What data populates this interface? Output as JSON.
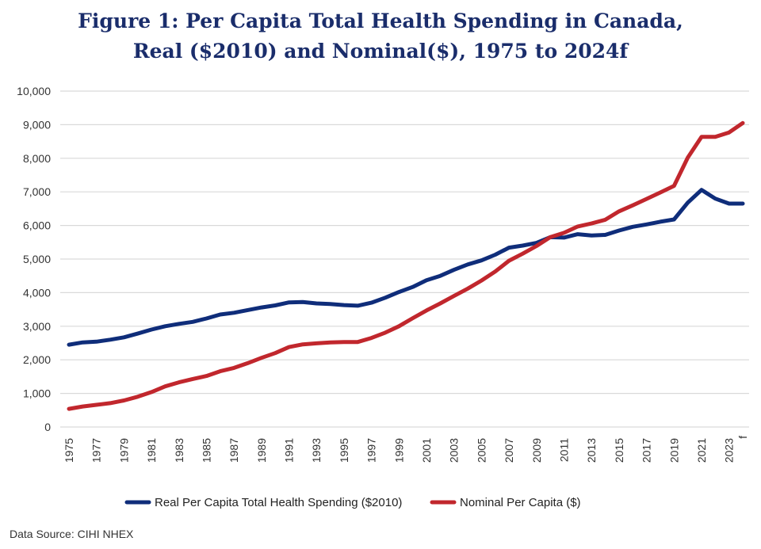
{
  "chart_data": {
    "type": "line",
    "title_line1": "Figure 1: Per Capita Total Health Spending in Canada,",
    "title_line2": "Real ($2010) and Nominal($), 1975 to 2024f",
    "xlabel": "",
    "ylabel": "",
    "ylim": [
      0,
      10000
    ],
    "yticks": [
      "0",
      "1,000",
      "2,000",
      "3,000",
      "4,000",
      "5,000",
      "6,000",
      "7,000",
      "8,000",
      "9,000",
      "10,000"
    ],
    "x": [
      1975,
      1976,
      1977,
      1978,
      1979,
      1980,
      1981,
      1982,
      1983,
      1984,
      1985,
      1986,
      1987,
      1988,
      1989,
      1990,
      1991,
      1992,
      1993,
      1994,
      1995,
      1996,
      1997,
      1998,
      1999,
      2000,
      2001,
      2002,
      2003,
      2004,
      2005,
      2006,
      2007,
      2008,
      2009,
      2010,
      2011,
      2012,
      2013,
      2014,
      2015,
      2016,
      2017,
      2018,
      2019,
      2020,
      2021,
      2022,
      2023,
      2024
    ],
    "xticks": [
      "1975",
      "1977",
      "1979",
      "1981",
      "1983",
      "1985",
      "1987",
      "1989",
      "1991",
      "1993",
      "1995",
      "1997",
      "1999",
      "2001",
      "2003",
      "2005",
      "2007",
      "2009",
      "2011",
      "2013",
      "2015",
      "2017",
      "2019",
      "2021",
      "2023",
      "f"
    ],
    "grid": true,
    "legend": "bottom",
    "series": [
      {
        "name": "Real Per Capita Total Health Spending ($2010)",
        "color": "#0f2d7a",
        "values": [
          2450,
          2520,
          2540,
          2600,
          2670,
          2780,
          2900,
          3000,
          3070,
          3130,
          3230,
          3350,
          3400,
          3480,
          3560,
          3620,
          3710,
          3720,
          3680,
          3660,
          3630,
          3610,
          3700,
          3850,
          4020,
          4170,
          4370,
          4500,
          4680,
          4840,
          4960,
          5130,
          5340,
          5400,
          5480,
          5650,
          5640,
          5740,
          5700,
          5720,
          5850,
          5960,
          6030,
          6110,
          6180,
          6680,
          7060,
          6800,
          6650,
          6650
        ]
      },
      {
        "name": "Nominal Per Capita ($)",
        "color": "#c1272d",
        "values": [
          540,
          610,
          660,
          710,
          790,
          900,
          1040,
          1210,
          1330,
          1430,
          1520,
          1660,
          1760,
          1900,
          2060,
          2200,
          2380,
          2460,
          2490,
          2520,
          2530,
          2530,
          2650,
          2810,
          3000,
          3240,
          3470,
          3680,
          3900,
          4120,
          4360,
          4630,
          4950,
          5160,
          5390,
          5650,
          5780,
          5970,
          6060,
          6170,
          6420,
          6600,
          6790,
          6980,
          7180,
          8020,
          8640,
          8640,
          8770,
          9050
        ]
      }
    ]
  },
  "source": "Data Source: CIHI NHEX"
}
